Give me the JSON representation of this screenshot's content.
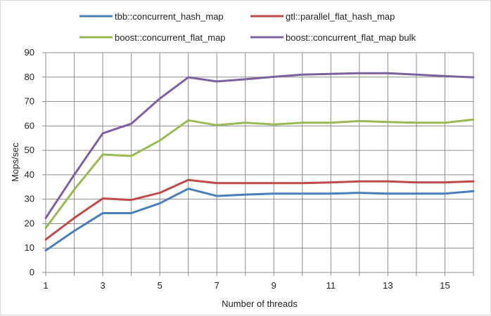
{
  "chart_data": {
    "type": "line",
    "title": "",
    "xlabel": "Number of threads",
    "ylabel": "Mops/sec",
    "xlim": [
      1,
      16
    ],
    "ylim": [
      0,
      90
    ],
    "x_ticks": [
      1,
      3,
      5,
      7,
      9,
      11,
      13,
      15
    ],
    "y_ticks": [
      0,
      10,
      20,
      30,
      40,
      50,
      60,
      70,
      80,
      90
    ],
    "grid": "vertical and horizontal major gridlines",
    "legend_position": "top",
    "x": [
      1,
      2,
      3,
      4,
      5,
      6,
      7,
      8,
      9,
      10,
      11,
      12,
      13,
      14,
      15,
      16
    ],
    "series": [
      {
        "name": "tbb::concurrent_hash_map",
        "color": "#4a7ebb",
        "values": [
          9,
          17,
          24.3,
          24.3,
          28.3,
          34.3,
          31.3,
          31.9,
          32.3,
          32.3,
          32.3,
          32.6,
          32.3,
          32.3,
          32.3,
          33.3
        ]
      },
      {
        "name": "gtl::parallel_flat_hash_map",
        "color": "#be4b48",
        "values": [
          13.5,
          22.3,
          30.3,
          29.7,
          32.6,
          37.9,
          36.6,
          36.6,
          36.6,
          36.6,
          36.9,
          37.3,
          37.3,
          36.9,
          36.9,
          37.3
        ]
      },
      {
        "name": "boost::concurrent_flat_map",
        "color": "#98b954",
        "values": [
          18.2,
          33.9,
          48.3,
          47.7,
          54,
          62.3,
          60.3,
          61.3,
          60.6,
          61.3,
          61.3,
          62,
          61.6,
          61.3,
          61.3,
          62.6
        ]
      },
      {
        "name": "boost::concurrent_flat_map bulk",
        "color": "#7d60a0",
        "values": [
          22.3,
          40,
          57,
          60.9,
          71.2,
          79.9,
          78.2,
          79.1,
          80.1,
          81,
          81.3,
          81.6,
          81.6,
          81,
          80.4,
          79.9
        ]
      }
    ]
  }
}
